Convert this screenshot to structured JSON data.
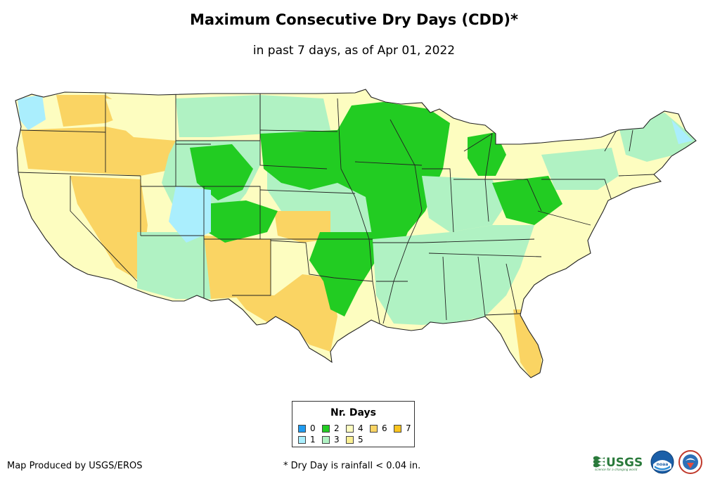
{
  "header": {
    "title": "Maximum Consecutive Dry Days (CDD)*",
    "subtitle": "in past 7 days, as of Apr 01, 2022"
  },
  "legend": {
    "title": "Nr. Days",
    "items": [
      {
        "label": "0",
        "color": "#1f9bf0"
      },
      {
        "label": "1",
        "color": "#aaeefd"
      },
      {
        "label": "2",
        "color": "#22cc22"
      },
      {
        "label": "3",
        "color": "#b0f2c3"
      },
      {
        "label": "4",
        "color": "#fdfdc0"
      },
      {
        "label": "5",
        "color": "#fbf093"
      },
      {
        "label": "6",
        "color": "#fad463"
      },
      {
        "label": "7",
        "color": "#fbc41e"
      }
    ]
  },
  "footer": {
    "credit": "Map Produced by USGS/EROS",
    "note": "* Dry Day is rainfall < 0.04 in."
  },
  "logos": {
    "usgs": "USGS",
    "usgs_tagline": "science for a changing world",
    "noaa": "noaa"
  }
}
